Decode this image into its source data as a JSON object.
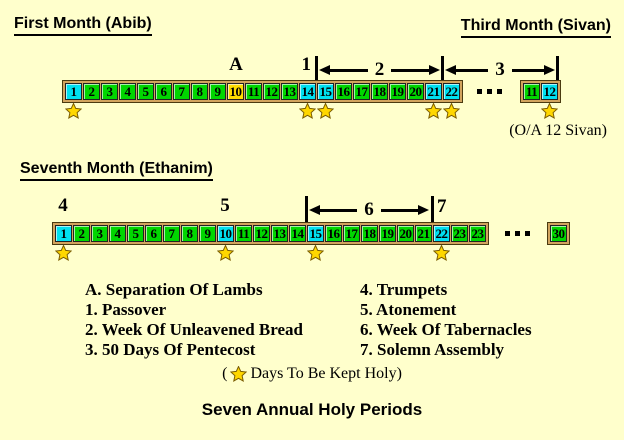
{
  "colors": {
    "background": "#FFFFCC",
    "strip": "#D2A45E",
    "day_green": "#00D600",
    "day_cyan": "#00E0F0",
    "day_gold": "#FFDD00",
    "star_fill": "#FFD700",
    "star_outline": "#7A5C00",
    "text": "#000000"
  },
  "month1": {
    "title": "First Month (Abib)",
    "title_right": "Third Month (Sivan)",
    "markers": {
      "a": "A",
      "p1": "1",
      "p2": "2",
      "p3": "3"
    },
    "ellipsis": "...",
    "days": [
      {
        "n": "1",
        "color": "cyan",
        "star": true
      },
      {
        "n": "2",
        "color": "green"
      },
      {
        "n": "3",
        "color": "green"
      },
      {
        "n": "4",
        "color": "green"
      },
      {
        "n": "5",
        "color": "green"
      },
      {
        "n": "6",
        "color": "green"
      },
      {
        "n": "7",
        "color": "green"
      },
      {
        "n": "8",
        "color": "green"
      },
      {
        "n": "9",
        "color": "green"
      },
      {
        "n": "10",
        "color": "yellow"
      },
      {
        "n": "11",
        "color": "green"
      },
      {
        "n": "12",
        "color": "green"
      },
      {
        "n": "13",
        "color": "green"
      },
      {
        "n": "14",
        "color": "cyan",
        "star": true
      },
      {
        "n": "15",
        "color": "cyan",
        "star": true
      },
      {
        "n": "16",
        "color": "green"
      },
      {
        "n": "17",
        "color": "green"
      },
      {
        "n": "18",
        "color": "green"
      },
      {
        "n": "19",
        "color": "green"
      },
      {
        "n": "20",
        "color": "green"
      },
      {
        "n": "21",
        "color": "cyan",
        "star": true
      },
      {
        "n": "22",
        "color": "cyan",
        "star": true
      }
    ],
    "extra_days": [
      {
        "n": "11",
        "color": "green"
      },
      {
        "n": "12",
        "color": "cyan",
        "star": true
      }
    ],
    "note": "(O/A 12 Sivan)"
  },
  "month7": {
    "title": "Seventh Month (Ethanim)",
    "markers": {
      "p4": "4",
      "p5": "5",
      "p6": "6",
      "p7": "7"
    },
    "ellipsis": "...",
    "days": [
      {
        "n": "1",
        "color": "cyan",
        "star": true
      },
      {
        "n": "2",
        "color": "green"
      },
      {
        "n": "3",
        "color": "green"
      },
      {
        "n": "4",
        "color": "green"
      },
      {
        "n": "5",
        "color": "green"
      },
      {
        "n": "6",
        "color": "green"
      },
      {
        "n": "7",
        "color": "green"
      },
      {
        "n": "8",
        "color": "green"
      },
      {
        "n": "9",
        "color": "green"
      },
      {
        "n": "10",
        "color": "cyan",
        "star": true
      },
      {
        "n": "11",
        "color": "green"
      },
      {
        "n": "12",
        "color": "green"
      },
      {
        "n": "13",
        "color": "green"
      },
      {
        "n": "14",
        "color": "green"
      },
      {
        "n": "15",
        "color": "cyan",
        "star": true
      },
      {
        "n": "16",
        "color": "green"
      },
      {
        "n": "17",
        "color": "green"
      },
      {
        "n": "18",
        "color": "green"
      },
      {
        "n": "19",
        "color": "green"
      },
      {
        "n": "20",
        "color": "green"
      },
      {
        "n": "21",
        "color": "green"
      },
      {
        "n": "22",
        "color": "cyan",
        "star": true
      },
      {
        "n": "23",
        "color": "green"
      },
      {
        "n": "23",
        "color": "green"
      }
    ],
    "extra_days": [
      {
        "n": "30",
        "color": "green"
      }
    ]
  },
  "legend": {
    "left": [
      "A. Separation Of Lambs",
      "1. Passover",
      "2. Week Of Unleavened Bread",
      "3. 50 Days Of Pentecost"
    ],
    "right": [
      "4. Trumpets",
      "5. Atonement",
      "6. Week Of Tabernacles",
      "7. Solemn Assembly"
    ]
  },
  "holy_note": {
    "prefix": "(",
    "suffix": "Days To Be Kept Holy)"
  },
  "bottom_title": "Seven Annual Holy Periods"
}
